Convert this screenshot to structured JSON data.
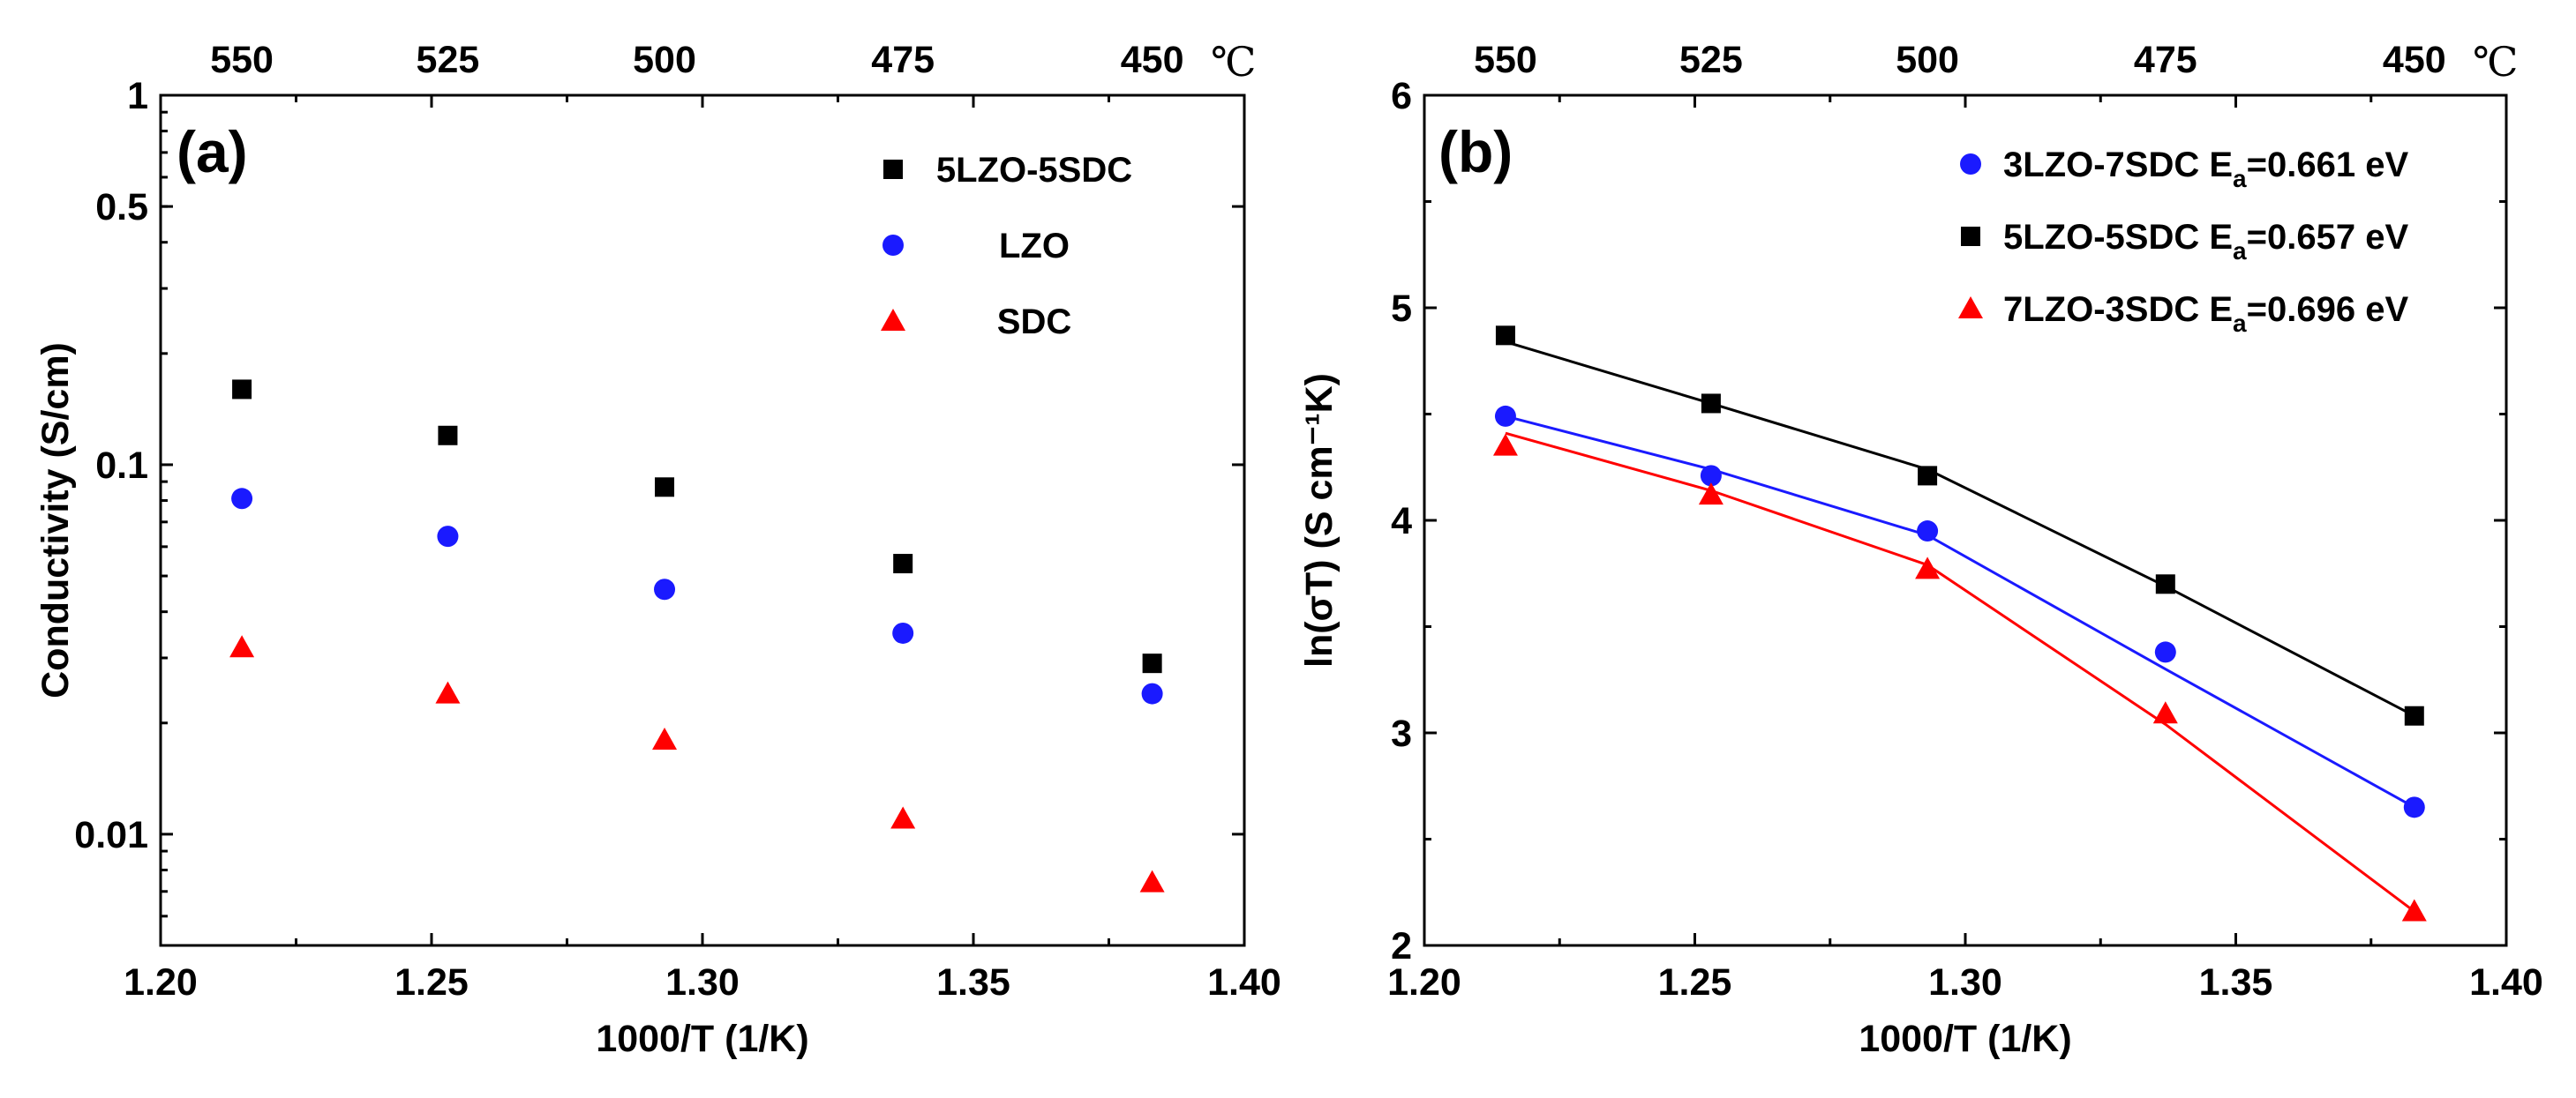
{
  "chart_data": [
    {
      "panel": "(a)",
      "type": "scatter",
      "xlabel": "1000/T (1/K)",
      "ylabel": "Conductivity (S/cm)",
      "xlim": [
        1.2,
        1.4
      ],
      "ylim": [
        0.005,
        1
      ],
      "yscale": "log",
      "x_ticks": [
        "1.20",
        "1.25",
        "1.30",
        "1.35",
        "1.40"
      ],
      "y_ticks": [
        {
          "value": 1,
          "label": "1"
        },
        {
          "value": 0.5,
          "label": "0.5"
        },
        {
          "value": 0.1,
          "label": "0.1"
        },
        {
          "value": 0.01,
          "label": "0.01"
        }
      ],
      "top_axis": {
        "labels": [
          "550",
          "525",
          "500",
          "475",
          "450"
        ],
        "unit": "℃"
      },
      "legend_position": "top-right",
      "series": [
        {
          "name": "5LZO-5SDC",
          "marker": "square",
          "color": "#000000",
          "x": [
            1.215,
            1.253,
            1.293,
            1.337,
            1.383
          ],
          "y": [
            0.16,
            0.12,
            0.087,
            0.054,
            0.029
          ]
        },
        {
          "name": "LZO",
          "marker": "circle",
          "color": "#1a1aff",
          "x": [
            1.215,
            1.253,
            1.293,
            1.337,
            1.383
          ],
          "y": [
            0.081,
            0.064,
            0.046,
            0.035,
            0.024
          ]
        },
        {
          "name": "SDC",
          "marker": "triangle",
          "color": "#ff0000",
          "x": [
            1.215,
            1.253,
            1.293,
            1.337,
            1.383
          ],
          "y": [
            0.032,
            0.024,
            0.018,
            0.011,
            0.0074
          ]
        }
      ]
    },
    {
      "panel": "(b)",
      "type": "line",
      "xlabel": "1000/T (1/K)",
      "ylabel": "ln(σT) (S cm⁻¹K)",
      "xlim": [
        1.2,
        1.4
      ],
      "ylim": [
        2,
        6
      ],
      "x_ticks": [
        "1.20",
        "1.25",
        "1.30",
        "1.35",
        "1.40"
      ],
      "y_ticks": [
        {
          "value": 2,
          "label": "2"
        },
        {
          "value": 3,
          "label": "3"
        },
        {
          "value": 4,
          "label": "4"
        },
        {
          "value": 5,
          "label": "5"
        },
        {
          "value": 6,
          "label": "6"
        }
      ],
      "top_axis": {
        "labels": [
          "550",
          "525",
          "500",
          "475",
          "450"
        ],
        "unit": "℃"
      },
      "legend_position": "top-right",
      "series": [
        {
          "name": "3LZO-7SDC",
          "ea_label": "E",
          "ea_sub": "a",
          "ea_value": "=0.661 eV",
          "marker": "circle",
          "color": "#1a1aff",
          "x": [
            1.215,
            1.253,
            1.293,
            1.337,
            1.383
          ],
          "y": [
            4.49,
            4.21,
            3.95,
            3.38,
            2.65
          ],
          "fit": [
            4.49,
            4.24,
            3.93,
            3.3,
            2.65
          ]
        },
        {
          "name": "5LZO-5SDC",
          "ea_label": "E",
          "ea_sub": "a",
          "ea_value": "=0.657 eV",
          "marker": "square",
          "color": "#000000",
          "x": [
            1.215,
            1.253,
            1.293,
            1.337,
            1.383
          ],
          "y": [
            4.87,
            4.55,
            4.21,
            3.7,
            3.08
          ],
          "fit": [
            4.84,
            4.55,
            4.24,
            3.69,
            3.08
          ]
        },
        {
          "name": "7LZO-3SDC",
          "ea_label": "E",
          "ea_sub": "a",
          "ea_value": "=0.696 eV",
          "marker": "triangle",
          "color": "#ff0000",
          "x": [
            1.215,
            1.253,
            1.293,
            1.337,
            1.383
          ],
          "y": [
            4.35,
            4.12,
            3.77,
            3.09,
            2.16
          ],
          "fit": [
            4.41,
            4.14,
            3.79,
            3.04,
            2.16
          ]
        }
      ]
    }
  ]
}
